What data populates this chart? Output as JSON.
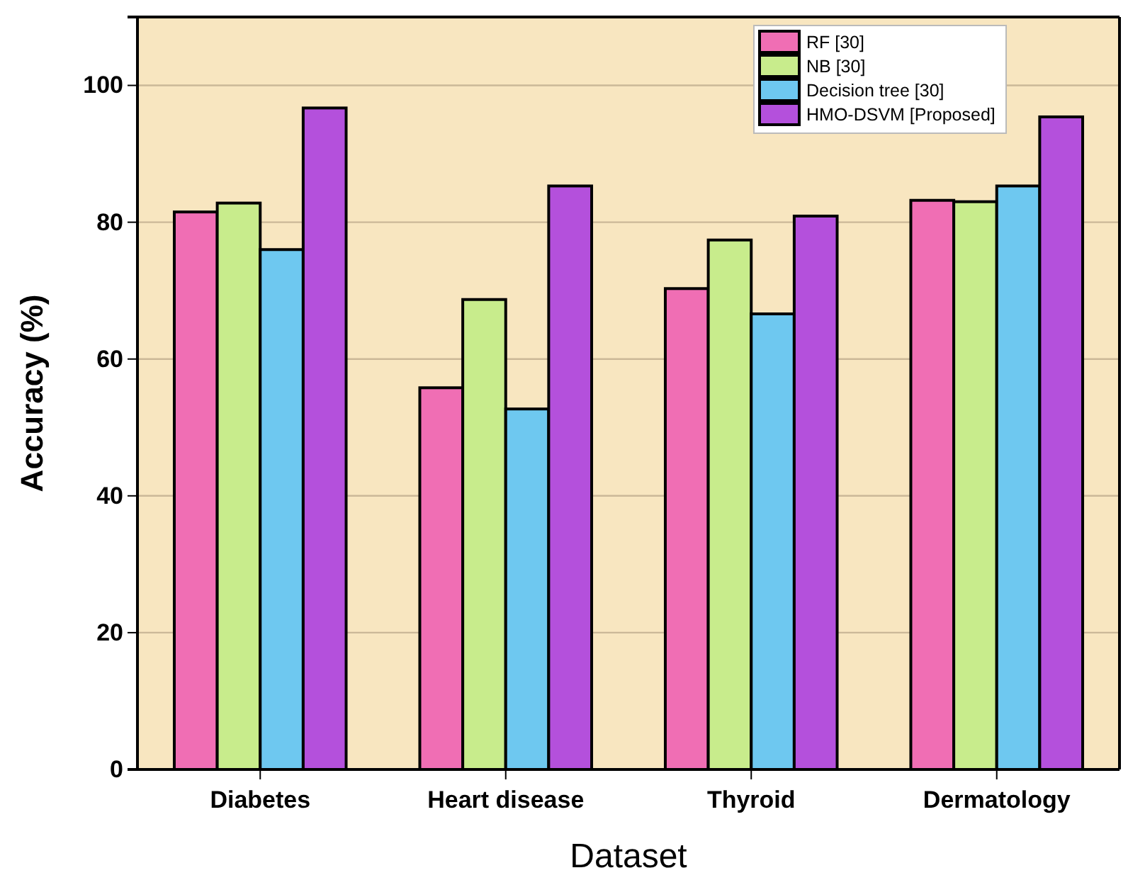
{
  "chart_data": {
    "type": "bar",
    "xlabel": "Dataset",
    "ylabel": "Accuracy (%)",
    "categories": [
      "Diabetes",
      "Heart disease",
      "Thyroid",
      "Dermatology"
    ],
    "series": [
      {
        "name": "RF [30]",
        "color": "#f06eb4",
        "values": [
          81.5,
          55.8,
          70.3,
          83.2
        ]
      },
      {
        "name": "NB [30]",
        "color": "#c8ec8c",
        "values": [
          82.8,
          68.7,
          77.4,
          83
        ]
      },
      {
        "name": "Decision tree [30]",
        "color": "#6ec8f0",
        "values": [
          76,
          52.7,
          66.6,
          85.3
        ]
      },
      {
        "name": "HMO-DSVM [Proposed]",
        "color": "#b450dc",
        "values": [
          96.7,
          85.3,
          80.9,
          95.4
        ]
      }
    ],
    "ylim": [
      0,
      110
    ],
    "yticks": [
      0,
      20,
      40,
      60,
      80,
      100
    ],
    "grid": "y",
    "legend": "top right"
  }
}
